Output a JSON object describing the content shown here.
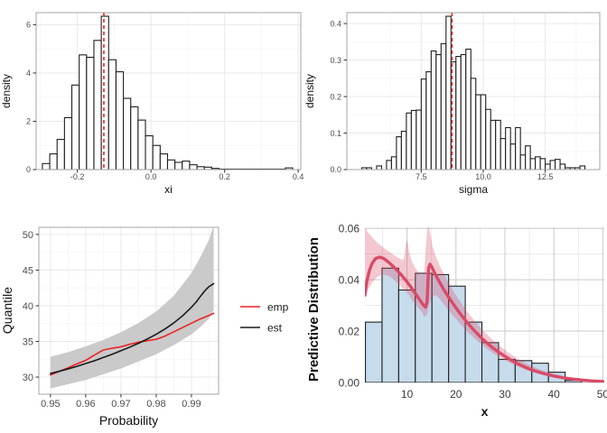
{
  "figure": {
    "background": "#ffffff"
  },
  "theme": {
    "grid_major_light": "#e9e9e9",
    "grid_minor_light": "#f5f5f5",
    "grid_major_dark": "#c9c9c9",
    "grid_minor_dark": "#e6e6e6",
    "panel_border": "#a6a6a6",
    "tick_mark": "#333333",
    "tick_text": "#4d4d4d",
    "tick_text_dark": "#3a3a3a",
    "axis_title": "#111111"
  },
  "chart_data": [
    {
      "id": "xi-histogram-chart",
      "type": "bar",
      "subtype": "histogram-density",
      "xlabel": "xi",
      "ylabel": "density",
      "xlim": [
        -0.312,
        0.407
      ],
      "ylim": [
        0,
        6.5
      ],
      "xticks": [
        -0.2,
        0.0,
        0.2,
        0.4
      ],
      "xtick_labels": [
        "-0.2",
        "0.0",
        "0.2",
        "0.4"
      ],
      "yticks": [
        0,
        2,
        4,
        6
      ],
      "ytick_labels": [
        "0",
        "2",
        "4",
        "6"
      ],
      "bins": {
        "start": -0.295,
        "width": 0.02,
        "heights": [
          0.25,
          0.65,
          1.25,
          2.15,
          3.5,
          4.75,
          4.65,
          5.35,
          6.35,
          4.55,
          4.05,
          2.95,
          2.6,
          2.05,
          1.4,
          1.0,
          0.65,
          0.4,
          0.3,
          0.35,
          0.2,
          0.12,
          0.1,
          0.05,
          0.02,
          0.02,
          0.02,
          0.02,
          0.02,
          0.02,
          0.02,
          0.02,
          0.02,
          0.07
        ]
      },
      "vline": {
        "x": -0.128,
        "style": "dashed"
      },
      "colors": {
        "bar_fill": "#ffffff",
        "bar_stroke": "#1f1f1f",
        "vline": "#ed2124"
      },
      "grid": "light"
    },
    {
      "id": "sigma-histogram-chart",
      "type": "bar",
      "subtype": "histogram-density",
      "xlabel": "sigma",
      "ylabel": "density",
      "xlim": [
        4.5,
        14.7
      ],
      "ylim": [
        0,
        0.43
      ],
      "xticks": [
        7.5,
        10.0,
        12.5
      ],
      "xtick_labels": [
        "7.5",
        "10.0",
        "12.5"
      ],
      "yticks": [
        0.0,
        0.1,
        0.2,
        0.3,
        0.4
      ],
      "ytick_labels": [
        "0.0",
        "0.1",
        "0.2",
        "0.3",
        "0.4"
      ],
      "bins": {
        "start": 5.1,
        "width": 0.2,
        "heights": [
          0.005,
          0.005,
          0,
          0.01,
          0,
          0.025,
          0.035,
          0.09,
          0.105,
          0.155,
          0.162,
          0.163,
          0.248,
          0.268,
          0.325,
          0.315,
          0.345,
          0.42,
          0.295,
          0.31,
          0.315,
          0.33,
          0.25,
          0.205,
          0.205,
          0.165,
          0.135,
          0.135,
          0.085,
          0.115,
          0.07,
          0.115,
          0.04,
          0.065,
          0.03,
          0.035,
          0.03,
          0.015,
          0.025,
          0.028,
          0.015,
          0.005,
          0.005,
          0.005,
          0.01
        ]
      },
      "vline": {
        "x": 8.74,
        "style": "dashed"
      },
      "colors": {
        "bar_fill": "#ffffff",
        "bar_stroke": "#1f1f1f",
        "vline": "#ed2124"
      },
      "grid": "light"
    },
    {
      "id": "quantile-plot-chart",
      "type": "line",
      "subtype": "quantile-with-confidence-band",
      "xlabel": "Probability",
      "ylabel": "Quantile",
      "xlim": [
        0.9467,
        0.9977
      ],
      "ylim": [
        27.6,
        51.0
      ],
      "xticks": [
        0.95,
        0.96,
        0.97,
        0.98,
        0.99
      ],
      "xtick_labels": [
        "0.95",
        "0.96",
        "0.97",
        "0.98",
        "0.99"
      ],
      "yticks": [
        30,
        35,
        40,
        45,
        50
      ],
      "ytick_labels": [
        "30",
        "35",
        "40",
        "45",
        "50"
      ],
      "band": {
        "x": [
          0.95,
          0.955,
          0.96,
          0.965,
          0.97,
          0.975,
          0.98,
          0.985,
          0.99,
          0.9925,
          0.995,
          0.9963
        ],
        "lower": [
          28.4,
          29.0,
          29.6,
          30.4,
          31.2,
          32.2,
          33.2,
          34.5,
          36.0,
          37.0,
          38.2,
          39.4
        ],
        "upper": [
          32.85,
          33.5,
          34.3,
          35.2,
          36.3,
          37.6,
          39.2,
          41.4,
          44.6,
          46.8,
          49.3,
          51.3
        ]
      },
      "series": [
        {
          "name": "emp",
          "x": [
            0.95,
            0.9525,
            0.955,
            0.9575,
            0.96,
            0.9625,
            0.965,
            0.9675,
            0.97,
            0.9725,
            0.975,
            0.9775,
            0.98,
            0.9825,
            0.985,
            0.9875,
            0.99,
            0.9925,
            0.995,
            0.9963
          ],
          "y": [
            30.3,
            30.8,
            31.3,
            31.85,
            32.35,
            33.1,
            33.8,
            34.05,
            34.25,
            34.6,
            34.9,
            35.1,
            35.3,
            35.75,
            36.35,
            36.95,
            37.55,
            38.15,
            38.65,
            38.95
          ]
        },
        {
          "name": "est",
          "x": [
            0.95,
            0.9525,
            0.955,
            0.9575,
            0.96,
            0.9625,
            0.965,
            0.9675,
            0.97,
            0.9725,
            0.975,
            0.9775,
            0.98,
            0.9825,
            0.985,
            0.9875,
            0.99,
            0.9913,
            0.9925,
            0.9938,
            0.995,
            0.9963
          ],
          "y": [
            30.5,
            30.82,
            31.15,
            31.5,
            31.9,
            32.3,
            32.75,
            33.2,
            33.7,
            34.2,
            34.75,
            35.35,
            36.0,
            36.75,
            37.6,
            38.6,
            39.8,
            40.5,
            41.3,
            42.1,
            42.7,
            43.1
          ]
        }
      ],
      "legend": {
        "position": "right",
        "items": [
          {
            "label": "emp"
          },
          {
            "label": "est"
          }
        ]
      },
      "colors": {
        "band": "#cacaca",
        "emp": "#ed2124",
        "est": "#1a1a1a"
      },
      "grid": "light"
    },
    {
      "id": "predictive-distribution-chart",
      "type": "bar",
      "subtype": "histogram-with-curve-and-ribbon",
      "xlabel": "x",
      "ylabel": "Predictive Distribution",
      "xlim": [
        1.4,
        50.3
      ],
      "ylim": [
        0,
        0.0604
      ],
      "xticks": [
        10,
        20,
        30,
        40,
        50
      ],
      "xtick_labels": [
        "10",
        "20",
        "30",
        "40",
        "50"
      ],
      "yticks": [
        0.0,
        0.02,
        0.04,
        0.06
      ],
      "ytick_labels": [
        "0.00",
        "0.02",
        "0.04",
        "0.06"
      ],
      "bins": {
        "start": 1.5,
        "width": 3.4,
        "heights": [
          0.0235,
          0.0445,
          0.036,
          0.0425,
          0.042,
          0.0375,
          0.0235,
          0.0155,
          0.009,
          0.0085,
          0.0075,
          0.004,
          0.0008
        ]
      },
      "curve": {
        "x": [
          1.4,
          1.8,
          2.3,
          2.9,
          3.6,
          4.4,
          5.2,
          6,
          7,
          8,
          9,
          10,
          11,
          12,
          12.6,
          13.2,
          13.8,
          14.1,
          14.4,
          14.7,
          15.1,
          15.6,
          16.5,
          17.5,
          18.5,
          19.5,
          20.5,
          21.5,
          22.5,
          23.5,
          24.5,
          25.5,
          26.5,
          27.5,
          28.5,
          29.5,
          31,
          32.5,
          34,
          35.5,
          37,
          38.5,
          40,
          42,
          44,
          46,
          48,
          50
        ],
        "y": [
          0.034,
          0.0395,
          0.0435,
          0.0465,
          0.0483,
          0.0488,
          0.0483,
          0.0472,
          0.0455,
          0.0436,
          0.0415,
          0.0392,
          0.0366,
          0.0338,
          0.0322,
          0.0305,
          0.0293,
          0.0315,
          0.0445,
          0.046,
          0.0448,
          0.0428,
          0.0395,
          0.0362,
          0.0332,
          0.0304,
          0.0277,
          0.0252,
          0.0229,
          0.0207,
          0.0187,
          0.0168,
          0.0151,
          0.0135,
          0.0121,
          0.0108,
          0.009,
          0.0074,
          0.0061,
          0.0049,
          0.004,
          0.0032,
          0.0025,
          0.0018,
          0.0013,
          0.0009,
          0.0006,
          0.0004
        ]
      },
      "band": {
        "x": [
          1.4,
          2,
          3,
          4,
          5,
          6,
          7,
          8,
          9,
          9.4,
          9.8,
          10.1,
          10.4,
          11,
          11.6,
          12.3,
          13,
          13.5,
          13.8,
          14.1,
          14.35,
          14.7,
          15.2,
          15.8,
          16.5,
          17.5,
          18.5,
          19.5,
          20.5,
          21.5,
          22.5,
          23.5,
          24.5,
          25.5,
          26.5,
          27.5,
          28.5,
          29.5,
          31,
          32.5,
          34,
          35.5,
          37,
          38.5,
          40,
          42,
          44,
          46,
          48,
          50
        ],
        "upper": [
          0.0605,
          0.0585,
          0.0562,
          0.0543,
          0.0528,
          0.0514,
          0.05,
          0.0488,
          0.0477,
          0.0483,
          0.0545,
          0.0555,
          0.051,
          0.047,
          0.0448,
          0.043,
          0.0417,
          0.0425,
          0.052,
          0.059,
          0.0615,
          0.0585,
          0.053,
          0.0495,
          0.0462,
          0.0423,
          0.0388,
          0.0355,
          0.0325,
          0.0297,
          0.0271,
          0.0247,
          0.0224,
          0.0203,
          0.0184,
          0.0166,
          0.0149,
          0.0134,
          0.0113,
          0.0094,
          0.0078,
          0.0064,
          0.0052,
          0.0042,
          0.0034,
          0.0025,
          0.0018,
          0.0013,
          0.0009,
          0.0007
        ],
        "lower": [
          0.033,
          0.036,
          0.0392,
          0.0412,
          0.042,
          0.0417,
          0.0405,
          0.0388,
          0.0368,
          0.036,
          0.0352,
          0.0348,
          0.0341,
          0.032,
          0.0307,
          0.0291,
          0.0275,
          0.0256,
          0.0258,
          0.0265,
          0.0285,
          0.0315,
          0.0335,
          0.034,
          0.0329,
          0.0305,
          0.0281,
          0.0258,
          0.0236,
          0.0215,
          0.0195,
          0.0177,
          0.016,
          0.0144,
          0.0129,
          0.0115,
          0.0103,
          0.0092,
          0.0077,
          0.0063,
          0.0051,
          0.0041,
          0.0033,
          0.0026,
          0.002,
          0.0014,
          0.001,
          0.0007,
          0.0004,
          0.0003
        ]
      },
      "colors": {
        "bar_fill": "#c6dbec",
        "bar_stroke": "#222222",
        "curve": "#d94a68",
        "band": "rgba(217,74,104,0.30)"
      },
      "grid": "dark"
    }
  ]
}
